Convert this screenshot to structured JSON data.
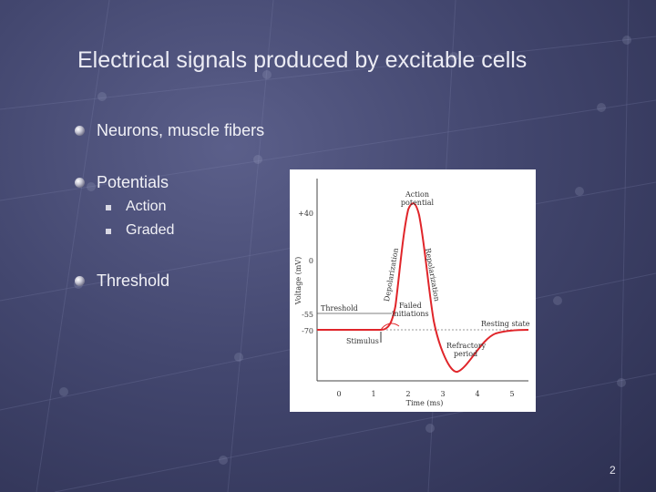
{
  "slide": {
    "title": "Electrical signals produced by excitable cells",
    "bullets": [
      {
        "text": "Neurons, muscle fibers"
      },
      {
        "text": "Potentials",
        "sub": [
          "Action",
          "Graded"
        ]
      },
      {
        "text": "Threshold"
      }
    ],
    "page_number": "2"
  },
  "figure": {
    "ylabel": "Voltage (mV)",
    "xlabel": "Time (ms)",
    "y_ticks": [
      "+40",
      "0",
      "-55",
      "-70"
    ],
    "x_ticks": [
      "0",
      "1",
      "2",
      "3",
      "4",
      "5"
    ],
    "annotations": {
      "action_potential_1": "Action",
      "action_potential_2": "potential",
      "depolarization": "Depolarization",
      "repolarization": "Repolarization",
      "threshold": "Threshold",
      "failed_1": "Failed",
      "failed_2": "initiations",
      "resting": "Resting state",
      "stimulus": "Stimulus",
      "refractory_1": "Refractory",
      "refractory_2": "period"
    },
    "colors": {
      "trace": "#e0252a",
      "threshold_line": "#555555"
    }
  }
}
